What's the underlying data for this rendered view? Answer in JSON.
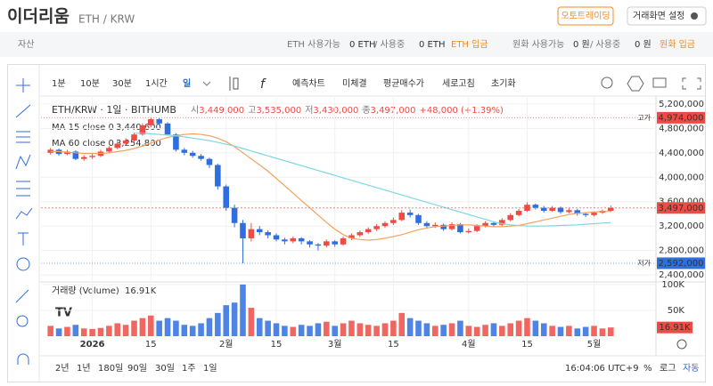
{
  "header": {
    "title": "이더리움",
    "pair": "ETH / KRW",
    "buttons": [
      "오토트레이딩",
      "거래화면 설정"
    ]
  },
  "assets": {
    "label": "자산",
    "eth_available": "ETH 사용가능",
    "eth_avail_value": "0 ETH",
    "eth_in_use": "/ 사용중",
    "eth_in_use_value": "0 ETH",
    "eth_deposit": "ETH 입금",
    "krw_available": "원화 사용가능",
    "krw_avail_value": "0 원",
    "krw_in_use": "/ 사용중",
    "krw_in_use_value": "0 원",
    "krw_deposit": "원화 입금"
  },
  "toolbar": {
    "intervals": [
      "1분",
      "10분",
      "30분",
      "1시간",
      "일"
    ],
    "actions": [
      "예측차트",
      "미체결",
      "평균매수가",
      "세로고침",
      "초기화"
    ]
  },
  "range_bar": {
    "ranges": [
      "2년",
      "1년",
      "180일",
      "90일",
      "30일",
      "1주",
      "1일"
    ],
    "time": "16:04:06 UTC+9",
    "options": [
      "%",
      "로그",
      "자동"
    ]
  },
  "chart_data": {
    "type": "candlestick",
    "legend": {
      "symbol": "ETH/KRW · 1일 · BITHUMB",
      "open_label": "시",
      "open": "3,449,000",
      "high_label": "고",
      "high": "3,535,000",
      "low_label": "저",
      "low": "3,430,000",
      "close_label": "종",
      "close": "3,497,000",
      "change": "+48,000 (+1.39%)",
      "volume_title": "거래량 (Volume)",
      "volume_value": "16.91K"
    },
    "up_color": "#ef4b45",
    "down_color": "#2f6ee0",
    "categories": [
      null,
      null,
      null,
      null,
      null,
      "2026",
      null,
      null,
      null,
      null,
      null,
      null,
      "15",
      null,
      null,
      null,
      null,
      null,
      null,
      null,
      null,
      "2월",
      null,
      null,
      null,
      null,
      null,
      "15",
      null,
      null,
      null,
      null,
      null,
      null,
      "3월",
      null,
      null,
      null,
      null,
      null,
      null,
      "15",
      null,
      null,
      null,
      null,
      null,
      null,
      null,
      null,
      "4월",
      null,
      null,
      null,
      null,
      null,
      null,
      "15",
      null,
      null,
      null,
      null,
      null,
      null,
      null,
      "5월",
      null,
      null
    ],
    "ohlc": [
      [
        4400000,
        4480000,
        4370000,
        4450000
      ],
      [
        4450000,
        4470000,
        4350000,
        4380000
      ],
      [
        4380000,
        4450000,
        4360000,
        4420000
      ],
      [
        4420000,
        4440000,
        4280000,
        4300000
      ],
      [
        4300000,
        4360000,
        4270000,
        4330000
      ],
      [
        4330000,
        4380000,
        4300000,
        4350000
      ],
      [
        4350000,
        4450000,
        4330000,
        4420000
      ],
      [
        4420000,
        4510000,
        4400000,
        4480000
      ],
      [
        4480000,
        4590000,
        4460000,
        4550000
      ],
      [
        4550000,
        4640000,
        4520000,
        4600000
      ],
      [
        4600000,
        4730000,
        4580000,
        4700000
      ],
      [
        4700000,
        4880000,
        4680000,
        4850000
      ],
      [
        4850000,
        4974000,
        4820000,
        4950000
      ],
      [
        4950000,
        4970000,
        4850000,
        4880000
      ],
      [
        4880000,
        4900000,
        4680000,
        4700000
      ],
      [
        4700000,
        4720000,
        4420000,
        4450000
      ],
      [
        4450000,
        4480000,
        4360000,
        4400000
      ],
      [
        4400000,
        4430000,
        4320000,
        4350000
      ],
      [
        4350000,
        4380000,
        4270000,
        4300000
      ],
      [
        4300000,
        4320000,
        4150000,
        4200000
      ],
      [
        4200000,
        4220000,
        3800000,
        3850000
      ],
      [
        3850000,
        3880000,
        3450000,
        3500000
      ],
      [
        3500000,
        3550000,
        3180000,
        3250000
      ],
      [
        3250000,
        3300000,
        2592000,
        3000000
      ],
      [
        3000000,
        3250000,
        2950000,
        3150000
      ],
      [
        3150000,
        3200000,
        3050000,
        3100000
      ],
      [
        3100000,
        3130000,
        3000000,
        3050000
      ],
      [
        3050000,
        3080000,
        2950000,
        2980000
      ],
      [
        2980000,
        3010000,
        2900000,
        2950000
      ],
      [
        2950000,
        3030000,
        2920000,
        3000000
      ],
      [
        3000000,
        3020000,
        2900000,
        2950000
      ],
      [
        2950000,
        2970000,
        2850000,
        2900000
      ],
      [
        2900000,
        2920000,
        2800000,
        2880000
      ],
      [
        2880000,
        2980000,
        2850000,
        2950000
      ],
      [
        2950000,
        2970000,
        2860000,
        2900000
      ],
      [
        2900000,
        3030000,
        2880000,
        3000000
      ],
      [
        3000000,
        3080000,
        2970000,
        3050000
      ],
      [
        3050000,
        3130000,
        3020000,
        3100000
      ],
      [
        3100000,
        3180000,
        3070000,
        3150000
      ],
      [
        3150000,
        3230000,
        3120000,
        3200000
      ],
      [
        3200000,
        3280000,
        3170000,
        3250000
      ],
      [
        3250000,
        3340000,
        3220000,
        3300000
      ],
      [
        3300000,
        3460000,
        3280000,
        3420000
      ],
      [
        3420000,
        3470000,
        3340000,
        3380000
      ],
      [
        3380000,
        3400000,
        3220000,
        3250000
      ],
      [
        3250000,
        3280000,
        3160000,
        3200000
      ],
      [
        3200000,
        3260000,
        3170000,
        3220000
      ],
      [
        3220000,
        3240000,
        3120000,
        3150000
      ],
      [
        3150000,
        3260000,
        3130000,
        3230000
      ],
      [
        3230000,
        3250000,
        3080000,
        3100000
      ],
      [
        3100000,
        3160000,
        3080000,
        3120000
      ],
      [
        3120000,
        3230000,
        3100000,
        3200000
      ],
      [
        3200000,
        3280000,
        3180000,
        3250000
      ],
      [
        3250000,
        3270000,
        3190000,
        3220000
      ],
      [
        3220000,
        3330000,
        3200000,
        3300000
      ],
      [
        3300000,
        3410000,
        3280000,
        3380000
      ],
      [
        3380000,
        3480000,
        3360000,
        3450000
      ],
      [
        3450000,
        3590000,
        3430000,
        3550000
      ],
      [
        3550000,
        3570000,
        3470000,
        3500000
      ],
      [
        3500000,
        3530000,
        3420000,
        3450000
      ],
      [
        3450000,
        3530000,
        3430000,
        3500000
      ],
      [
        3500000,
        3520000,
        3400000,
        3430000
      ],
      [
        3430000,
        3490000,
        3410000,
        3460000
      ],
      [
        3460000,
        3480000,
        3370000,
        3400000
      ],
      [
        3400000,
        3420000,
        3350000,
        3380000
      ],
      [
        3380000,
        3440000,
        3360000,
        3420000
      ],
      [
        3420000,
        3470000,
        3400000,
        3450000
      ],
      [
        3449000,
        3535000,
        3430000,
        3497000
      ]
    ],
    "volume": [
      20000,
      15000,
      18000,
      22000,
      15000,
      14000,
      16000,
      20000,
      25000,
      22000,
      30000,
      35000,
      40000,
      30000,
      35000,
      30000,
      22000,
      20000,
      25000,
      35000,
      45000,
      60000,
      65000,
      100000,
      55000,
      35000,
      30000,
      25000,
      20000,
      18000,
      22000,
      20000,
      25000,
      28000,
      20000,
      25000,
      30000,
      25000,
      22000,
      20000,
      25000,
      30000,
      45000,
      35000,
      30000,
      25000,
      20000,
      22000,
      25000,
      30000,
      20000,
      18000,
      22000,
      25000,
      20000,
      25000,
      30000,
      35000,
      30000,
      25000,
      20000,
      18000,
      20000,
      15000,
      18000,
      20000,
      15000,
      16910
    ],
    "series": [
      {
        "name": "MA 15 close 0",
        "color": "#f4a15d",
        "last_label": "3,440,600",
        "values": [
          4420000,
          4420000,
          4410000,
          4400000,
          4390000,
          4390000,
          4390000,
          4400000,
          4420000,
          4440000,
          4470000,
          4510000,
          4560000,
          4610000,
          4650000,
          4680000,
          4700000,
          4710000,
          4700000,
          4680000,
          4640000,
          4580000,
          4500000,
          4400000,
          4300000,
          4200000,
          4100000,
          3980000,
          3860000,
          3740000,
          3620000,
          3500000,
          3380000,
          3260000,
          3150000,
          3060000,
          3000000,
          2980000,
          2970000,
          2980000,
          3000000,
          3030000,
          3060000,
          3100000,
          3140000,
          3170000,
          3190000,
          3200000,
          3210000,
          3220000,
          3220000,
          3210000,
          3200000,
          3190000,
          3190000,
          3200000,
          3210000,
          3240000,
          3270000,
          3300000,
          3330000,
          3360000,
          3390000,
          3410000,
          3420000,
          3430000,
          3440000,
          3440600
        ]
      },
      {
        "name": "MA 60 close 0",
        "color": "#7fd6e3",
        "last_label": "3,254,800",
        "values": [
          null,
          null,
          null,
          null,
          null,
          null,
          null,
          null,
          null,
          null,
          4720000,
          4720000,
          4710000,
          4700000,
          4690000,
          4680000,
          4660000,
          4640000,
          4620000,
          4600000,
          4570000,
          4540000,
          4510000,
          4470000,
          4430000,
          4390000,
          4350000,
          4310000,
          4270000,
          4230000,
          4190000,
          4150000,
          4110000,
          4070000,
          4030000,
          3990000,
          3950000,
          3910000,
          3870000,
          3830000,
          3790000,
          3750000,
          3710000,
          3670000,
          3630000,
          3590000,
          3550000,
          3510000,
          3470000,
          3430000,
          3390000,
          3350000,
          3310000,
          3270000,
          3240000,
          3220000,
          3210000,
          3200000,
          3200000,
          3200000,
          3205000,
          3210000,
          3215000,
          3220000,
          3230000,
          3240000,
          3250000,
          3254800
        ]
      }
    ],
    "ylim": [
      2300000,
      5300000
    ],
    "yticks": [
      {
        "value": 2400000,
        "label": "2,400,000"
      },
      {
        "value": 2800000,
        "label": "2,800,000"
      },
      {
        "value": 3200000,
        "label": "3,200,000"
      },
      {
        "value": 3600000,
        "label": "3,600,000"
      },
      {
        "value": 4000000,
        "label": "4,000,000"
      },
      {
        "value": 4400000,
        "label": "4,400,000"
      },
      {
        "value": 4800000,
        "label": "4,800,000"
      },
      {
        "value": 5200000,
        "label": "5,200,000"
      }
    ],
    "vlim": [
      0,
      105000
    ],
    "vticks": [
      {
        "value": 50000,
        "label": "50K"
      },
      {
        "value": 100000,
        "label": "100K"
      }
    ],
    "price_lines": [
      {
        "name": "고가",
        "value": 4974000,
        "label": "4,974,000",
        "color": "#ef4b45"
      },
      {
        "name": "저가",
        "value": 2592000,
        "label": "2,592,000",
        "color": "#2f6ee0"
      }
    ],
    "last_price": {
      "value": 3497000,
      "label": "3,497,000",
      "color": "#ef4b45"
    },
    "grid": true
  }
}
